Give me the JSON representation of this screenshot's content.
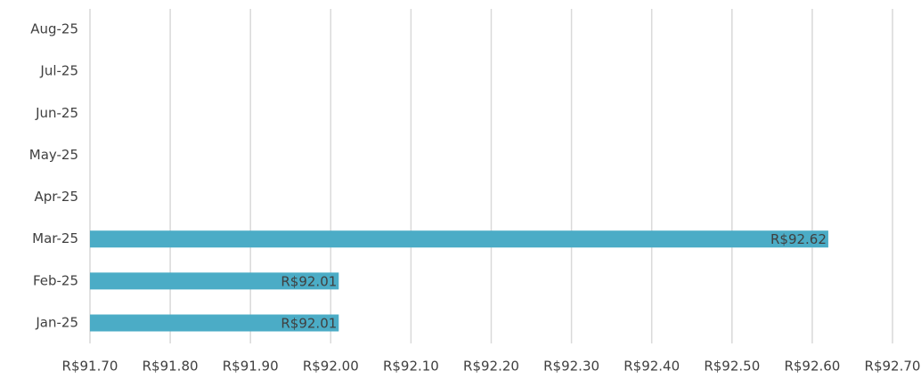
{
  "chart_data": {
    "type": "barh",
    "categories": [
      "Jan-25",
      "Feb-25",
      "Mar-25",
      "Apr-25",
      "May-25",
      "Jun-25",
      "Jul-25",
      "Aug-25"
    ],
    "values": [
      92.01,
      92.01,
      92.62,
      null,
      null,
      null,
      null,
      null
    ],
    "value_labels": [
      "R$92.01",
      "R$92.01",
      "R$92.62",
      null,
      null,
      null,
      null,
      null
    ],
    "color": "#4bacc6",
    "xlim": [
      91.7,
      92.7
    ],
    "xticks": [
      {
        "value": 91.7,
        "label": "R$91.70"
      },
      {
        "value": 91.8,
        "label": "R$91.80"
      },
      {
        "value": 91.9,
        "label": "R$91.90"
      },
      {
        "value": 92.0,
        "label": "R$92.00"
      },
      {
        "value": 92.1,
        "label": "R$92.10"
      },
      {
        "value": 92.2,
        "label": "R$92.20"
      },
      {
        "value": 92.3,
        "label": "R$92.30"
      },
      {
        "value": 92.4,
        "label": "R$92.40"
      },
      {
        "value": 92.5,
        "label": "R$92.50"
      },
      {
        "value": 92.6,
        "label": "R$92.60"
      },
      {
        "value": 92.7,
        "label": "R$92.70"
      }
    ],
    "grid": true
  }
}
